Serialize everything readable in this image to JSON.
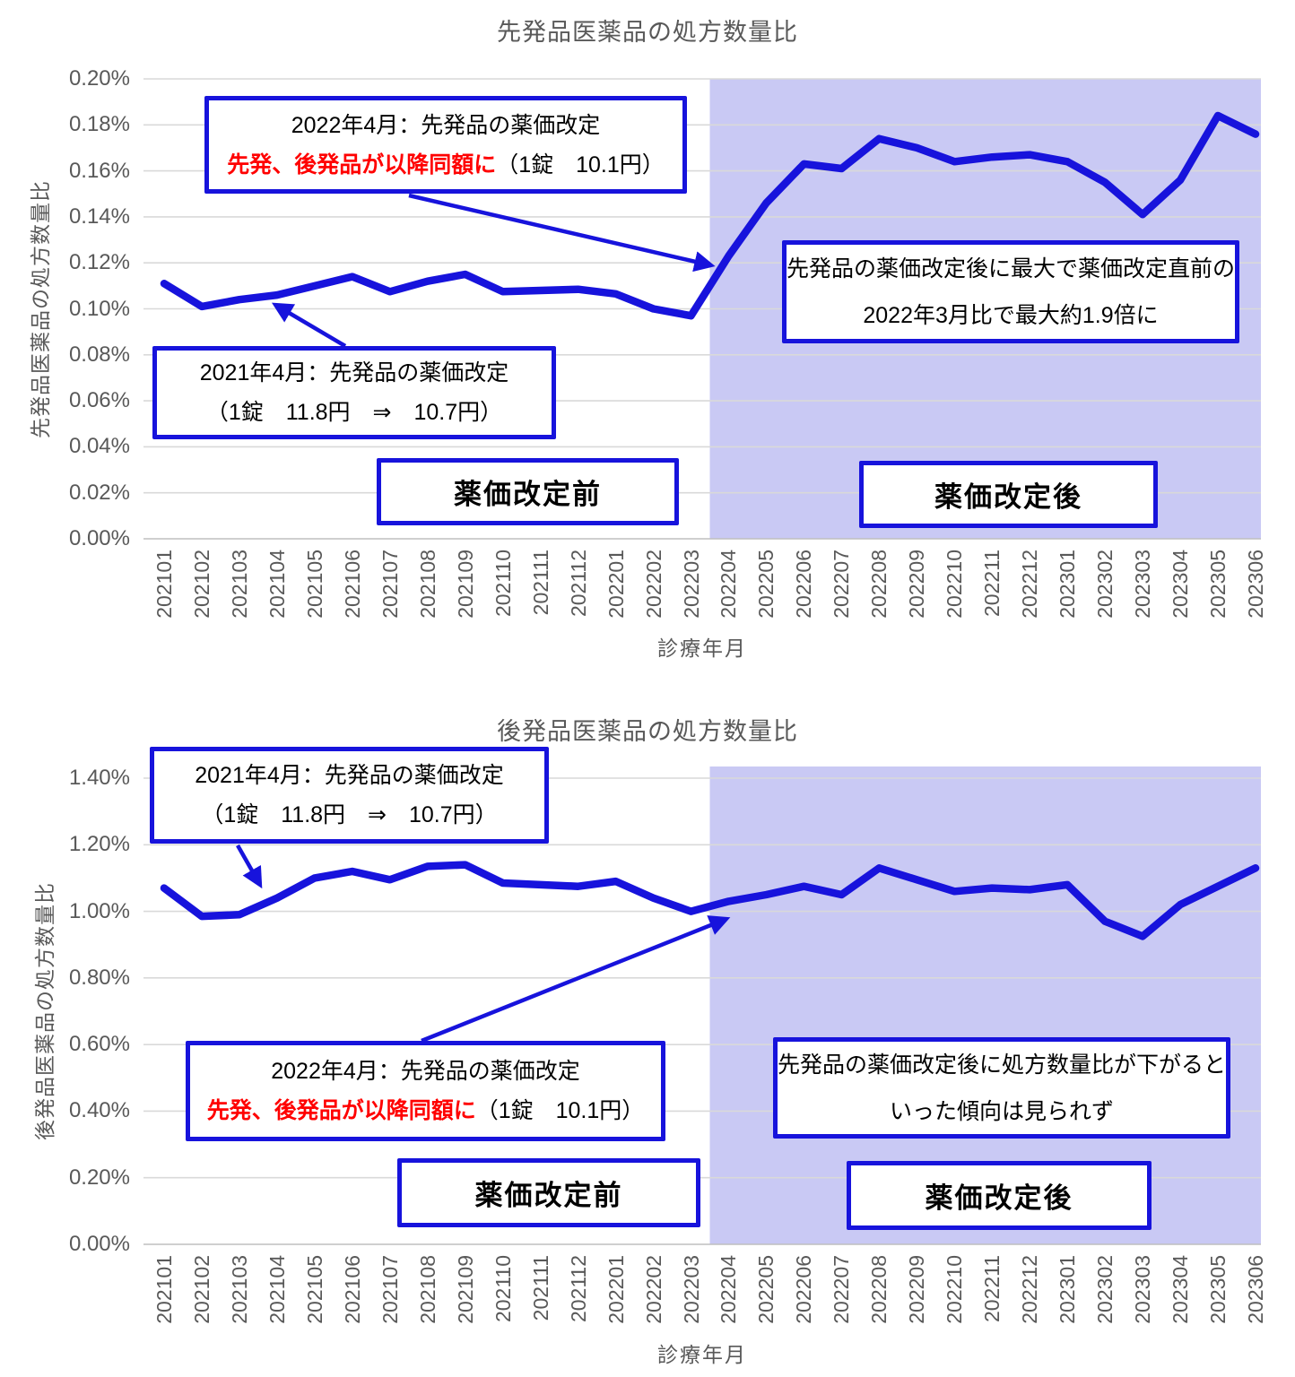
{
  "colors": {
    "line": "#1713DC",
    "box_border": "#1713DC",
    "shade": "#C9C9F4",
    "grid": "#D9D9D9",
    "axis_line": "#BFBFBF",
    "axis_text": "#595959",
    "annotation_red": "#FF0000",
    "annotation_black": "#000000"
  },
  "chart_data": [
    {
      "type": "line",
      "title": "先発品医薬品の処方数量比",
      "xlabel": "診療年月",
      "ylabel": "先発品医薬品の処方数量比",
      "unit": "percent",
      "ylim": [
        0,
        0.2
      ],
      "yticks": [
        "0.00%",
        "0.02%",
        "0.04%",
        "0.06%",
        "0.08%",
        "0.10%",
        "0.12%",
        "0.14%",
        "0.16%",
        "0.18%",
        "0.20%"
      ],
      "grid": true,
      "legend": false,
      "categories": [
        "202101",
        "202102",
        "202103",
        "202104",
        "202105",
        "202106",
        "202107",
        "202108",
        "202109",
        "202110",
        "202111",
        "202112",
        "202201",
        "202202",
        "202203",
        "202204",
        "202205",
        "202206",
        "202207",
        "202208",
        "202209",
        "202210",
        "202211",
        "202212",
        "202301",
        "202302",
        "202303",
        "202304",
        "202305",
        "202306"
      ],
      "values": [
        0.111,
        0.101,
        0.104,
        0.106,
        0.11,
        0.114,
        0.1075,
        0.112,
        0.115,
        0.1075,
        0.108,
        0.1085,
        0.1065,
        0.1,
        0.097,
        0.123,
        0.146,
        0.163,
        0.161,
        0.174,
        0.17,
        0.164,
        0.166,
        0.167,
        0.164,
        0.155,
        0.141,
        0.156,
        0.184,
        0.176
      ],
      "shaded_region": {
        "from": "202204",
        "to": "202306"
      },
      "annotations": {
        "box_2022": {
          "line1": "2022年4月：先発品の薬価改定",
          "line2_red": "先発、後発品が以降同額に",
          "line2_black": "（1錠　10.1円）"
        },
        "box_2021": {
          "line1": "2021年4月：先発品の薬価改定",
          "line2": "（1錠　11.8円　⇒　10.7円）"
        },
        "box_result": {
          "line1": "先発品の薬価改定後に最大で薬価改定直前の",
          "line2": "2022年3月比で最大約1.9倍に"
        },
        "label_before": "薬価改定前",
        "label_after": "薬価改定後"
      }
    },
    {
      "type": "line",
      "title": "後発品医薬品の処方数量比",
      "xlabel": "診療年月",
      "ylabel": "後発品医薬品の処方数量比",
      "unit": "percent",
      "ylim": [
        0,
        1.4
      ],
      "yticks": [
        "0.00%",
        "0.20%",
        "0.40%",
        "0.60%",
        "0.80%",
        "1.00%",
        "1.20%",
        "1.40%"
      ],
      "grid": true,
      "legend": false,
      "categories": [
        "202101",
        "202102",
        "202103",
        "202104",
        "202105",
        "202106",
        "202107",
        "202108",
        "202109",
        "202110",
        "202111",
        "202112",
        "202201",
        "202202",
        "202203",
        "202204",
        "202205",
        "202206",
        "202207",
        "202208",
        "202209",
        "202210",
        "202211",
        "202212",
        "202301",
        "202302",
        "202303",
        "202304",
        "202305",
        "202306"
      ],
      "values": [
        1.07,
        0.985,
        0.99,
        1.04,
        1.1,
        1.12,
        1.095,
        1.135,
        1.14,
        1.085,
        1.08,
        1.075,
        1.09,
        1.04,
        1.0,
        1.03,
        1.05,
        1.075,
        1.05,
        1.13,
        1.095,
        1.06,
        1.07,
        1.065,
        1.08,
        0.97,
        0.925,
        1.02,
        1.075,
        1.13
      ],
      "shaded_region": {
        "from": "202204",
        "to": "202306"
      },
      "annotations": {
        "box_2021": {
          "line1": "2021年4月：先発品の薬価改定",
          "line2": "（1錠　11.8円　⇒　10.7円）"
        },
        "box_2022": {
          "line1": "2022年4月：先発品の薬価改定",
          "line2_red": "先発、後発品が以降同額に",
          "line2_black": "（1錠　10.1円）"
        },
        "box_result": {
          "line1": "先発品の薬価改定後に処方数量比が下がると",
          "line2": "いった傾向は見られず"
        },
        "label_before": "薬価改定前",
        "label_after": "薬価改定後"
      }
    }
  ]
}
